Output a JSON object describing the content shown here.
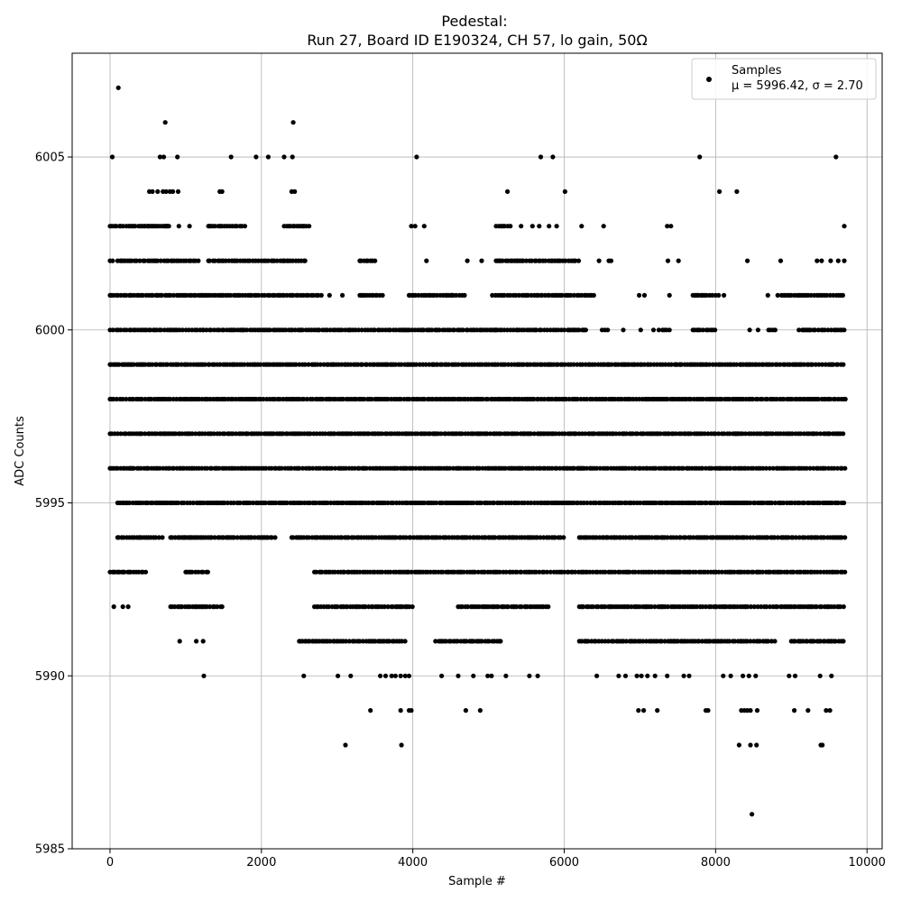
{
  "chart_data": {
    "type": "scatter",
    "title": "Pedestal:",
    "subtitle": "Run 27, Board ID E190324, CH 57, lo gain, 50Ω",
    "xlabel": "Sample #",
    "ylabel": "ADC Counts",
    "xlim": [
      -500,
      10200
    ],
    "ylim": [
      5985,
      6008
    ],
    "x_ticks": [
      0,
      2000,
      4000,
      6000,
      8000,
      10000
    ],
    "y_ticks": [
      5985,
      5990,
      5995,
      6000,
      6005
    ],
    "grid": true,
    "point_color": "#000000",
    "n_samples": 9720,
    "legend": {
      "position": "top-right",
      "label": "Samples",
      "stats_line": "μ = 5996.42, σ = 2.70"
    },
    "series": [
      {
        "name": "Samples",
        "level_ranges": [
          {
            "y": 5999,
            "x_ranges": [
              [
                0,
                9720
              ]
            ]
          },
          {
            "y": 5998,
            "x_ranges": [
              [
                0,
                9720
              ]
            ]
          },
          {
            "y": 5997,
            "x_ranges": [
              [
                0,
                9720
              ]
            ]
          },
          {
            "y": 5996,
            "x_ranges": [
              [
                0,
                9720
              ]
            ]
          },
          {
            "y": 6000,
            "x_ranges": [
              [
                0,
                5100
              ],
              [
                5100,
                6300
              ],
              [
                6500,
                6600
              ],
              [
                7300,
                7400
              ],
              [
                7700,
                8000
              ],
              [
                8700,
                8800
              ],
              [
                9100,
                9700
              ]
            ]
          },
          {
            "y": 5995,
            "x_ranges": [
              [
                100,
                9720
              ]
            ]
          },
          {
            "y": 6001,
            "x_ranges": [
              [
                0,
                2800
              ],
              [
                3300,
                3600
              ],
              [
                3950,
                4700
              ],
              [
                5050,
                6400
              ],
              [
                7700,
                8000
              ],
              [
                8900,
                9700
              ]
            ]
          },
          {
            "y": 5994,
            "x_ranges": [
              [
                100,
                700
              ],
              [
                800,
                2200
              ],
              [
                2400,
                6000
              ],
              [
                6200,
                9720
              ]
            ]
          },
          {
            "y": 6002,
            "x_ranges": [
              [
                0,
                50
              ],
              [
                100,
                1200
              ],
              [
                1300,
                2600
              ],
              [
                3300,
                3500
              ],
              [
                5100,
                6200
              ]
            ]
          },
          {
            "y": 5993,
            "x_ranges": [
              [
                0,
                500
              ],
              [
                1000,
                1300
              ],
              [
                2700,
                9720
              ]
            ]
          },
          {
            "y": 6003,
            "x_ranges": [
              [
                0,
                800
              ],
              [
                1300,
                1800
              ],
              [
                2300,
                2600
              ],
              [
                5100,
                5300
              ]
            ]
          },
          {
            "y": 5992,
            "x_ranges": [
              [
                800,
                1500
              ],
              [
                2700,
                4000
              ],
              [
                4600,
                5800
              ],
              [
                6200,
                9720
              ]
            ]
          },
          {
            "y": 5991,
            "x_ranges": [
              [
                2500,
                3900
              ],
              [
                4300,
                5200
              ],
              [
                6200,
                8800
              ],
              [
                9000,
                9700
              ]
            ]
          }
        ],
        "points": [
          [
            110,
            6007
          ],
          [
            730,
            6006
          ],
          [
            2420,
            6006
          ],
          [
            30,
            6005
          ],
          [
            660,
            6005
          ],
          [
            710,
            6005
          ],
          [
            890,
            6005
          ],
          [
            1600,
            6005
          ],
          [
            1930,
            6005
          ],
          [
            2090,
            6005
          ],
          [
            2300,
            6005
          ],
          [
            2410,
            6005
          ],
          [
            4050,
            6005
          ],
          [
            5690,
            6005
          ],
          [
            5850,
            6005
          ],
          [
            7790,
            6005
          ],
          [
            9590,
            6005
          ],
          [
            520,
            6004
          ],
          [
            560,
            6004
          ],
          [
            630,
            6004
          ],
          [
            700,
            6004
          ],
          [
            740,
            6004
          ],
          [
            790,
            6004
          ],
          [
            830,
            6004
          ],
          [
            900,
            6004
          ],
          [
            1450,
            6004
          ],
          [
            1480,
            6004
          ],
          [
            2400,
            6004
          ],
          [
            2440,
            6004
          ],
          [
            5250,
            6004
          ],
          [
            6010,
            6004
          ],
          [
            8050,
            6004
          ],
          [
            8280,
            6004
          ],
          [
            6230,
            6003
          ],
          [
            6520,
            6003
          ],
          [
            7360,
            6003
          ],
          [
            7410,
            6003
          ],
          [
            9700,
            6003
          ],
          [
            910,
            6003
          ],
          [
            1050,
            6003
          ],
          [
            2630,
            6003
          ],
          [
            3980,
            6003
          ],
          [
            4030,
            6003
          ],
          [
            4150,
            6003
          ],
          [
            5430,
            6003
          ],
          [
            5580,
            6003
          ],
          [
            5670,
            6003
          ],
          [
            5800,
            6003
          ],
          [
            5900,
            6003
          ],
          [
            4180,
            6002
          ],
          [
            4720,
            6002
          ],
          [
            4910,
            6002
          ],
          [
            6460,
            6002
          ],
          [
            6590,
            6002
          ],
          [
            6620,
            6002
          ],
          [
            7370,
            6002
          ],
          [
            7510,
            6002
          ],
          [
            8420,
            6002
          ],
          [
            8860,
            6002
          ],
          [
            9340,
            6002
          ],
          [
            9400,
            6002
          ],
          [
            9520,
            6002
          ],
          [
            9620,
            6002
          ],
          [
            9700,
            6002
          ],
          [
            6990,
            6001
          ],
          [
            7060,
            6001
          ],
          [
            7390,
            6001
          ],
          [
            8040,
            6001
          ],
          [
            8110,
            6001
          ],
          [
            8690,
            6001
          ],
          [
            8820,
            6001
          ],
          [
            8870,
            6001
          ],
          [
            2900,
            6001
          ],
          [
            3070,
            6001
          ],
          [
            4450,
            6001
          ],
          [
            4520,
            6001
          ],
          [
            6780,
            6000
          ],
          [
            7010,
            6000
          ],
          [
            7180,
            6000
          ],
          [
            7250,
            6000
          ],
          [
            8450,
            6000
          ],
          [
            8560,
            6000
          ],
          [
            3440,
            5989
          ],
          [
            3840,
            5989
          ],
          [
            3950,
            5989
          ],
          [
            3980,
            5989
          ],
          [
            4700,
            5989
          ],
          [
            4890,
            5989
          ],
          [
            6980,
            5989
          ],
          [
            7050,
            5989
          ],
          [
            7230,
            5989
          ],
          [
            7870,
            5989
          ],
          [
            7900,
            5989
          ],
          [
            8340,
            5989
          ],
          [
            8380,
            5989
          ],
          [
            8420,
            5989
          ],
          [
            8460,
            5989
          ],
          [
            8550,
            5989
          ],
          [
            9040,
            5989
          ],
          [
            9220,
            5989
          ],
          [
            9460,
            5989
          ],
          [
            9510,
            5989
          ],
          [
            3110,
            5988
          ],
          [
            3850,
            5988
          ],
          [
            8310,
            5988
          ],
          [
            8460,
            5988
          ],
          [
            8540,
            5988
          ],
          [
            9390,
            5988
          ],
          [
            9410,
            5988
          ],
          [
            8480,
            5986
          ],
          [
            1240,
            5990
          ],
          [
            2560,
            5990
          ],
          [
            3010,
            5990
          ],
          [
            3180,
            5990
          ],
          [
            3570,
            5990
          ],
          [
            3640,
            5990
          ],
          [
            3720,
            5990
          ],
          [
            3770,
            5990
          ],
          [
            3840,
            5990
          ],
          [
            3900,
            5990
          ],
          [
            3950,
            5990
          ],
          [
            4380,
            5990
          ],
          [
            4600,
            5990
          ],
          [
            4800,
            5990
          ],
          [
            4990,
            5990
          ],
          [
            5040,
            5990
          ],
          [
            5230,
            5990
          ],
          [
            5540,
            5990
          ],
          [
            5650,
            5990
          ],
          [
            6430,
            5990
          ],
          [
            6720,
            5990
          ],
          [
            6810,
            5990
          ],
          [
            6960,
            5990
          ],
          [
            7020,
            5990
          ],
          [
            7100,
            5990
          ],
          [
            7200,
            5990
          ],
          [
            7360,
            5990
          ],
          [
            7580,
            5990
          ],
          [
            7650,
            5990
          ],
          [
            8100,
            5990
          ],
          [
            8200,
            5990
          ],
          [
            8360,
            5990
          ],
          [
            8440,
            5990
          ],
          [
            8530,
            5990
          ],
          [
            8970,
            5990
          ],
          [
            9050,
            5990
          ],
          [
            9380,
            5990
          ],
          [
            9530,
            5990
          ],
          [
            920,
            5991
          ],
          [
            1140,
            5991
          ],
          [
            1230,
            5991
          ],
          [
            50,
            5992
          ],
          [
            170,
            5992
          ],
          [
            240,
            5992
          ],
          [
            1000,
            5994
          ],
          [
            1550,
            5994
          ],
          [
            1620,
            5994
          ]
        ]
      }
    ]
  }
}
